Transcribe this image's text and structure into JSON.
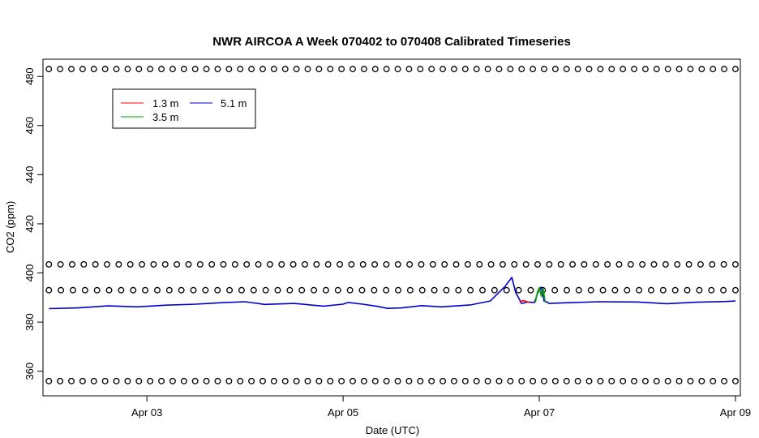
{
  "chart_data": {
    "type": "line",
    "title": "NWR AIRCOA A  Week 070402 to 070408  Calibrated Timeseries",
    "xlabel": "Date (UTC)",
    "ylabel": "CO2 (ppm)",
    "xlim": [
      -0.06,
      7.05
    ],
    "ylim": [
      350,
      487
    ],
    "x_ticks": [
      {
        "value": 1,
        "label": "Apr 03"
      },
      {
        "value": 3,
        "label": "Apr 05"
      },
      {
        "value": 5,
        "label": "Apr 07"
      },
      {
        "value": 7,
        "label": "Apr 09"
      }
    ],
    "y_ticks": [
      360,
      380,
      400,
      420,
      440,
      460,
      480
    ],
    "legend": {
      "position": "top-left",
      "entries": [
        {
          "label": "1.3 m",
          "color": "#ff0000"
        },
        {
          "label": "3.5 m",
          "color": "#00aa00"
        },
        {
          "label": "5.1 m",
          "color": "#0000cc"
        }
      ]
    },
    "series": [
      {
        "name": "5.1 m",
        "color": "#0000cc",
        "x": [
          0.0,
          0.3,
          0.6,
          0.9,
          1.2,
          1.5,
          1.8,
          2.0,
          2.2,
          2.5,
          2.8,
          3.0,
          3.05,
          3.2,
          3.35,
          3.45,
          3.6,
          3.8,
          4.0,
          4.3,
          4.5,
          4.65,
          4.72,
          4.76,
          4.82,
          4.88,
          4.95,
          5.0,
          5.02,
          5.05,
          5.08,
          5.1,
          5.3,
          5.6,
          6.0,
          6.3,
          6.6,
          6.9,
          7.0
        ],
        "y": [
          385.5,
          385.8,
          386.6,
          386.2,
          386.9,
          387.3,
          388.0,
          388.3,
          387.2,
          387.6,
          386.5,
          387.3,
          388.0,
          387.3,
          386.4,
          385.6,
          385.8,
          386.7,
          386.2,
          387.0,
          388.6,
          394.5,
          398.2,
          392.0,
          387.6,
          388.2,
          388.0,
          393.5,
          394.2,
          388.5,
          388.2,
          387.6,
          387.9,
          388.3,
          388.2,
          387.5,
          388.1,
          388.4,
          388.6
        ]
      },
      {
        "name": "3.5 m",
        "color": "#00aa00",
        "x": [
          4.96,
          4.98,
          5.0,
          5.02,
          5.04,
          5.06
        ],
        "y": [
          388.0,
          392.0,
          394.0,
          390.5,
          393.5,
          388.2
        ]
      },
      {
        "name": "1.3 m",
        "color": "#ff0000",
        "x": [
          4.8,
          4.83,
          4.86,
          4.9
        ],
        "y": [
          388.0,
          388.8,
          388.5,
          388.0
        ]
      }
    ],
    "flag_markers": [
      {
        "y": 483,
        "count": 62
      },
      {
        "y": 403.5,
        "count": 60
      },
      {
        "y": 393,
        "count": 58
      },
      {
        "y": 356,
        "count": 62
      }
    ]
  }
}
